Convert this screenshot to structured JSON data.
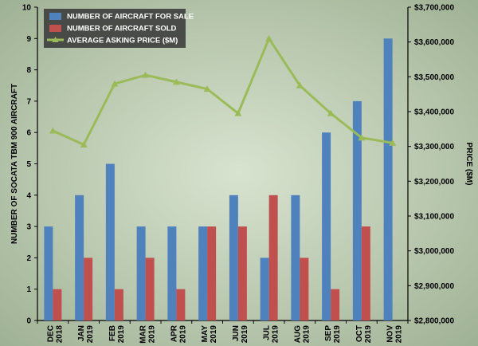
{
  "chart_data": {
    "type": "bar",
    "categories": [
      [
        "DEC",
        "2018"
      ],
      [
        "JAN",
        "2019"
      ],
      [
        "FEB",
        "2019"
      ],
      [
        "MAR",
        "2019"
      ],
      [
        "APR",
        "2019"
      ],
      [
        "MAY",
        "2019"
      ],
      [
        "JUN",
        "2019"
      ],
      [
        "JUL",
        "2019"
      ],
      [
        "AUG",
        "2019"
      ],
      [
        "SEP",
        "2019"
      ],
      [
        "OCT",
        "2019"
      ],
      [
        "NOV",
        "2019"
      ]
    ],
    "series": [
      {
        "name": "NUMBER OF AIRCRAFT FOR SALE",
        "type": "bar",
        "axis": "left",
        "color": "#4f81bd",
        "values": [
          3,
          4,
          5,
          3,
          3,
          3,
          4,
          2,
          4,
          6,
          7,
          9
        ]
      },
      {
        "name": "NUMBER OF AIRCRAFT SOLD",
        "type": "bar",
        "axis": "left",
        "color": "#c0504d",
        "values": [
          1,
          2,
          1,
          2,
          1,
          3,
          3,
          4,
          2,
          1,
          3,
          0
        ]
      },
      {
        "name": "AVERAGE ASKING PRICE ($M)",
        "type": "line",
        "axis": "right",
        "color": "#9bbb59",
        "values": [
          3345000,
          3305000,
          3480000,
          3505000,
          3485000,
          3465000,
          3395000,
          3610000,
          3475000,
          3395000,
          3325000,
          3310000
        ]
      }
    ],
    "ylabel": "NUMBER OF SOCATA TBM 900 AIRCRAFT",
    "ylabel_right": "PRICE ($M)",
    "ylim": [
      0,
      10
    ],
    "y_ticks": [
      "0",
      "1",
      "2",
      "3",
      "4",
      "5",
      "6",
      "7",
      "8",
      "9",
      "10"
    ],
    "ylim_right": [
      2800000,
      3700000
    ],
    "y_ticks_right": [
      "$2,800,000",
      "$2,900,000",
      "$3,000,000",
      "$3,100,000",
      "$3,200,000",
      "$3,300,000",
      "$3,400,000",
      "$3,500,000",
      "$3,600,000",
      "$3,700,000"
    ],
    "legend_position": "top-left",
    "grid": false,
    "background_color": "#c4d1bb"
  }
}
